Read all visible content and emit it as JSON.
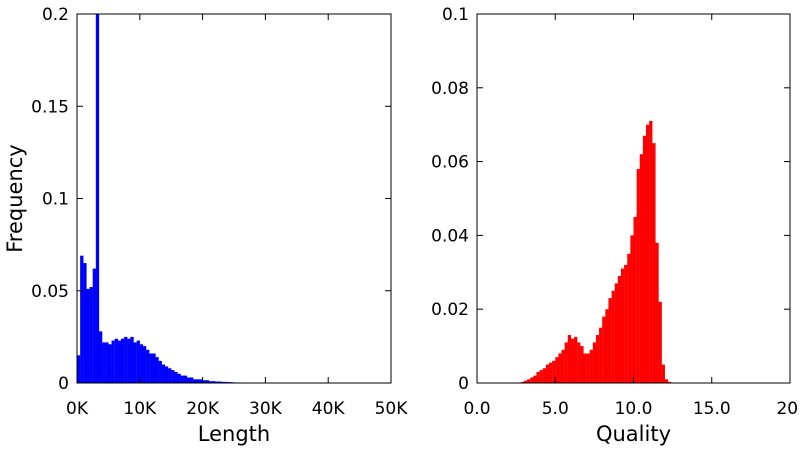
{
  "chart_data": [
    {
      "type": "bar",
      "title": "",
      "xlabel": "Length",
      "ylabel": "Frequency",
      "xlim": [
        0,
        50000
      ],
      "ylim": [
        0,
        0.2
      ],
      "x_ticks": [
        "0K",
        "10K",
        "20K",
        "30K",
        "40K",
        "50K"
      ],
      "y_ticks": [
        "0",
        "0.05",
        "0.1",
        "0.15",
        "0.2"
      ],
      "bin_width": 500,
      "color": "#0000ff",
      "bins": [
        [
          0,
          0.015
        ],
        [
          500,
          0.069
        ],
        [
          1000,
          0.065
        ],
        [
          1500,
          0.051
        ],
        [
          2000,
          0.052
        ],
        [
          2500,
          0.062
        ],
        [
          3000,
          0.2
        ],
        [
          3500,
          0.028
        ],
        [
          4000,
          0.022
        ],
        [
          4500,
          0.022
        ],
        [
          5000,
          0.021
        ],
        [
          5500,
          0.023
        ],
        [
          6000,
          0.024
        ],
        [
          6500,
          0.023
        ],
        [
          7000,
          0.024
        ],
        [
          7500,
          0.025
        ],
        [
          8000,
          0.024
        ],
        [
          8500,
          0.025
        ],
        [
          9000,
          0.022
        ],
        [
          9500,
          0.023
        ],
        [
          10000,
          0.021
        ],
        [
          10500,
          0.02
        ],
        [
          11000,
          0.018
        ],
        [
          11500,
          0.016
        ],
        [
          12000,
          0.016
        ],
        [
          12500,
          0.014
        ],
        [
          13000,
          0.012
        ],
        [
          13500,
          0.01
        ],
        [
          14000,
          0.009
        ],
        [
          14500,
          0.008
        ],
        [
          15000,
          0.007
        ],
        [
          15500,
          0.006
        ],
        [
          16000,
          0.005
        ],
        [
          16500,
          0.004
        ],
        [
          17000,
          0.004
        ],
        [
          17500,
          0.003
        ],
        [
          18000,
          0.003
        ],
        [
          18500,
          0.002
        ],
        [
          19000,
          0.002
        ],
        [
          19500,
          0.002
        ],
        [
          20000,
          0.0015
        ],
        [
          20500,
          0.0015
        ],
        [
          21000,
          0.001
        ],
        [
          21500,
          0.001
        ],
        [
          22000,
          0.0008
        ],
        [
          22500,
          0.0008
        ],
        [
          23000,
          0.0006
        ],
        [
          23500,
          0.0006
        ],
        [
          24000,
          0.0005
        ],
        [
          24500,
          0.0004
        ],
        [
          25000,
          0.0003
        ],
        [
          25500,
          0.0003
        ],
        [
          26000,
          0.0002
        ],
        [
          26500,
          0.0002
        ],
        [
          27000,
          0.0002
        ],
        [
          27500,
          0.0001
        ],
        [
          28000,
          0.0001
        ],
        [
          29000,
          0.0001
        ],
        [
          30000,
          0.0001
        ],
        [
          32000,
          0.0001
        ],
        [
          34000,
          0.0001
        ],
        [
          36000,
          0.0001
        ]
      ]
    },
    {
      "type": "bar",
      "title": "",
      "xlabel": "Quality",
      "ylabel": "",
      "xlim": [
        0,
        20
      ],
      "ylim": [
        0,
        0.1
      ],
      "x_ticks": [
        "0.0",
        "5.0",
        "10.0",
        "15.0",
        "20."
      ],
      "y_ticks": [
        "0",
        "0.02",
        "0.04",
        "0.06",
        "0.08",
        "0.1"
      ],
      "bin_width": 0.2,
      "color": "#ff0000",
      "bins": [
        [
          2.8,
          0.0003
        ],
        [
          3.0,
          0.0006
        ],
        [
          3.2,
          0.001
        ],
        [
          3.4,
          0.0015
        ],
        [
          3.6,
          0.002
        ],
        [
          3.8,
          0.003
        ],
        [
          4.0,
          0.0035
        ],
        [
          4.2,
          0.004
        ],
        [
          4.4,
          0.005
        ],
        [
          4.6,
          0.0055
        ],
        [
          4.8,
          0.006
        ],
        [
          5.0,
          0.007
        ],
        [
          5.2,
          0.008
        ],
        [
          5.4,
          0.009
        ],
        [
          5.6,
          0.011
        ],
        [
          5.8,
          0.013
        ],
        [
          6.0,
          0.012
        ],
        [
          6.2,
          0.0125
        ],
        [
          6.4,
          0.011
        ],
        [
          6.6,
          0.01
        ],
        [
          6.8,
          0.008
        ],
        [
          7.0,
          0.008
        ],
        [
          7.2,
          0.009
        ],
        [
          7.4,
          0.011
        ],
        [
          7.6,
          0.013
        ],
        [
          7.8,
          0.015
        ],
        [
          8.0,
          0.018
        ],
        [
          8.2,
          0.02
        ],
        [
          8.4,
          0.023
        ],
        [
          8.6,
          0.025
        ],
        [
          8.8,
          0.027
        ],
        [
          9.0,
          0.029
        ],
        [
          9.2,
          0.031
        ],
        [
          9.4,
          0.032
        ],
        [
          9.6,
          0.035
        ],
        [
          9.8,
          0.04
        ],
        [
          10.0,
          0.045
        ],
        [
          10.2,
          0.058
        ],
        [
          10.4,
          0.062
        ],
        [
          10.6,
          0.067
        ],
        [
          10.8,
          0.07
        ],
        [
          11.0,
          0.071
        ],
        [
          11.2,
          0.065
        ],
        [
          11.4,
          0.038
        ],
        [
          11.6,
          0.022
        ],
        [
          11.8,
          0.005
        ],
        [
          12.0,
          0.001
        ],
        [
          12.2,
          0.0003
        ]
      ]
    }
  ]
}
